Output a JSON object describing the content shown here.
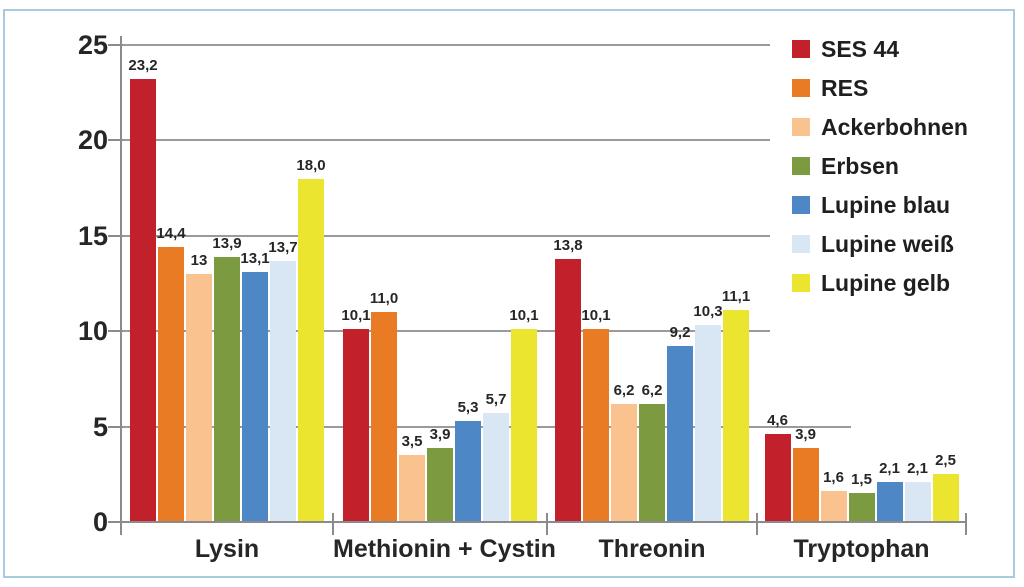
{
  "chart_data": {
    "type": "bar",
    "title": "",
    "xlabel": "",
    "ylabel": "",
    "categories": [
      "Lysin",
      "Methionin + Cystin",
      "Threonin",
      "Tryptophan"
    ],
    "series": [
      {
        "name": "SES 44",
        "color": "#c2212b",
        "values": [
          23.2,
          10.1,
          13.8,
          4.6
        ],
        "labels": [
          "23,2",
          "10,1",
          "13,8",
          "4,6"
        ]
      },
      {
        "name": "RES",
        "color": "#e87b24",
        "values": [
          14.4,
          11.0,
          10.1,
          3.9
        ],
        "labels": [
          "14,4",
          "11,0",
          "10,1",
          "3,9"
        ]
      },
      {
        "name": "Ackerbohnen",
        "color": "#f9c28e",
        "values": [
          13.0,
          3.5,
          6.2,
          1.6
        ],
        "labels": [
          "13",
          "3,5",
          "6,2",
          "1,6"
        ]
      },
      {
        "name": "Erbsen",
        "color": "#7c9b40",
        "values": [
          13.9,
          3.9,
          6.2,
          1.5
        ],
        "labels": [
          "13,9",
          "3,9",
          "6,2",
          "1,5"
        ]
      },
      {
        "name": "Lupine blau",
        "color": "#4e87c6",
        "values": [
          13.1,
          5.3,
          9.2,
          2.1
        ],
        "labels": [
          "13,1",
          "5,3",
          "9,2",
          "2,1"
        ]
      },
      {
        "name": "Lupine weiß",
        "color": "#d9e6f4",
        "values": [
          13.7,
          5.7,
          10.3,
          2.1
        ],
        "labels": [
          "13,7",
          "5,7",
          "10,3",
          "2,1"
        ]
      },
      {
        "name": "Lupine gelb",
        "color": "#ece52f",
        "values": [
          18.0,
          10.1,
          11.1,
          2.5
        ],
        "labels": [
          "18,0",
          "10,1",
          "11,1",
          "2,5"
        ]
      }
    ],
    "ylim": [
      0,
      25
    ],
    "yticks": [
      0,
      5,
      10,
      15,
      20,
      25
    ],
    "ytick_labels": [
      "0",
      "5",
      "10",
      "15",
      "20",
      "25"
    ],
    "grid": "horizontal",
    "legend_position": "top-right"
  },
  "colors": {
    "grid": "#9a9a9a",
    "axis": "#8b8b8b",
    "text": "#262626",
    "frame": "#a9cbdf",
    "background": "#ffffff"
  }
}
